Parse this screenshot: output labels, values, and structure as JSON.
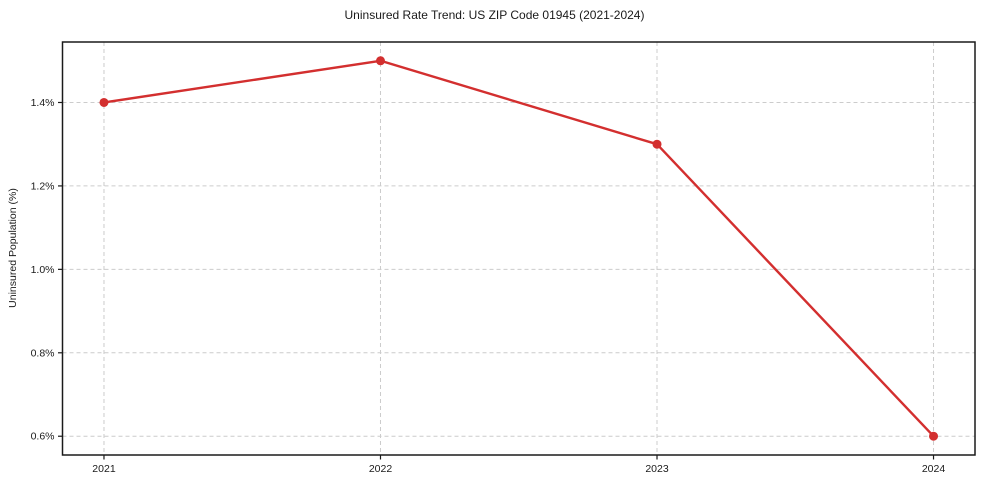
{
  "chart_data": {
    "type": "line",
    "title": "Uninsured Rate Trend: US ZIP Code 01945 (2021-2024)",
    "xlabel": "",
    "ylabel": "Uninsured Population (%)",
    "x": [
      2021,
      2022,
      2023,
      2024
    ],
    "values": [
      1.4,
      1.5,
      1.3,
      0.6
    ],
    "xticks": [
      2021,
      2022,
      2023,
      2024
    ],
    "xtick_labels": [
      "2021",
      "2022",
      "2023",
      "2024"
    ],
    "yticks": [
      0.6,
      0.8,
      1.0,
      1.2,
      1.4
    ],
    "ytick_labels": [
      "0.6%",
      "0.8%",
      "1.0%",
      "1.2%",
      "1.4%"
    ],
    "xlim": [
      2020.85,
      2024.15
    ],
    "ylim": [
      0.555,
      1.545
    ],
    "grid": true,
    "legend": "none",
    "line_color": "#d32f2f",
    "grid_color": "#cccccc",
    "axis_color": "#1a1a1a"
  }
}
